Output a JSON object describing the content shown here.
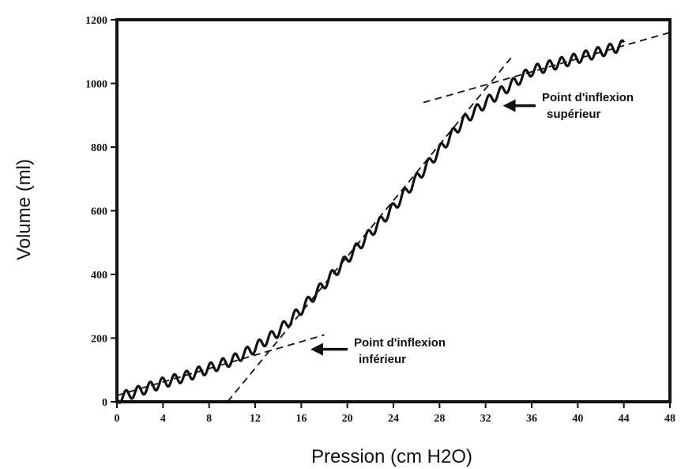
{
  "chart_data": {
    "type": "line",
    "xlabel": "Pression (cm H2O)",
    "ylabel": "Volume (ml)",
    "xlim": [
      0,
      48
    ],
    "ylim": [
      0,
      1200
    ],
    "xticks": [
      0,
      4,
      8,
      12,
      16,
      20,
      24,
      28,
      32,
      36,
      40,
      44,
      48
    ],
    "yticks": [
      0,
      200,
      400,
      600,
      800,
      1000,
      1200
    ],
    "grid": false,
    "series": [
      {
        "style": "solid-oscillating",
        "x": [
          0,
          2,
          4,
          6,
          8,
          10,
          12,
          14,
          16,
          18,
          20,
          22,
          24,
          26,
          28,
          30,
          32,
          34,
          36,
          38,
          40,
          42,
          44
        ],
        "y": [
          10,
          35,
          60,
          80,
          105,
          130,
          170,
          220,
          290,
          370,
          450,
          530,
          610,
          700,
          790,
          880,
          940,
          990,
          1040,
          1060,
          1080,
          1100,
          1120
        ]
      }
    ],
    "tangent_lines": [
      {
        "x": [
          0,
          18
        ],
        "y": [
          20,
          210
        ]
      },
      {
        "x": [
          9.6,
          34.2
        ],
        "y": [
          0,
          1080
        ]
      },
      {
        "x": [
          26.6,
          48
        ],
        "y": [
          940,
          1160
        ]
      }
    ],
    "annotations": [
      {
        "line1": "Point d'inflexion",
        "line2": "inférieur",
        "arrow_to": [
          16.8,
          165
        ]
      },
      {
        "line1": "Point d'inflexion",
        "line2": "supérieur",
        "arrow_to": [
          33.5,
          930
        ]
      }
    ]
  }
}
